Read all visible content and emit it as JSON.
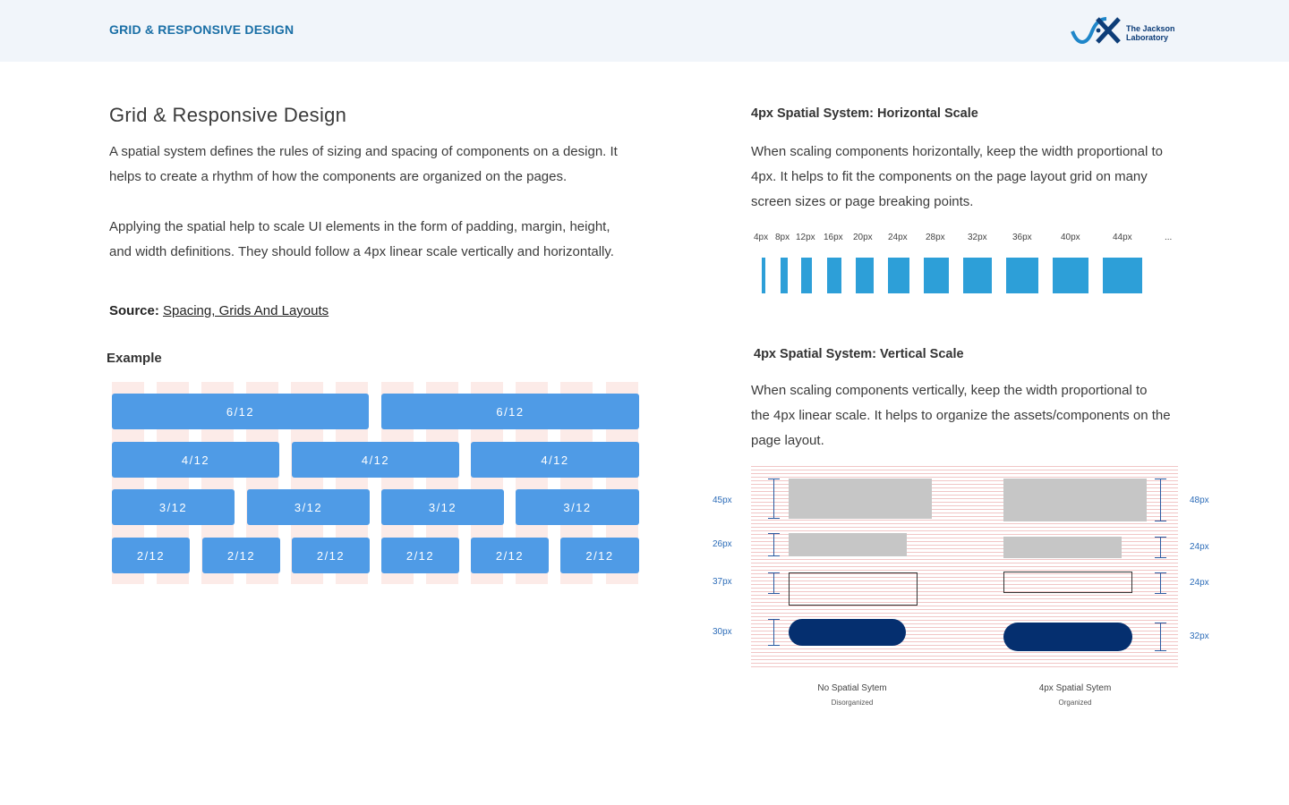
{
  "header": {
    "breadcrumb": "GRID & RESPONSIVE DESIGN",
    "logo_line1": "The Jackson",
    "logo_line2": "Laboratory",
    "accent": "#1a6fa6"
  },
  "left": {
    "title": "Grid & Responsive Design",
    "para1_line1": "A spatial system defines the rules of sizing and spacing of components on a design. It",
    "para1_line2": "helps to create a  rhythm of how the components are organized on the pages.",
    "para2_line1": "Applying the spatial help to scale UI elements in the form of padding, margin, height,",
    "para2_line2": "and width definitions. They should follow a 4px linear scale vertically and horizontally.",
    "source_label": "Source:",
    "source_link": "Spacing, Grids And Layouts",
    "example_label": "Example",
    "grid_rows": [
      [
        "6/12",
        "6/12"
      ],
      [
        "4/12",
        "4/12",
        "4/12"
      ],
      [
        "3/12",
        "3/12",
        "3/12",
        "3/12"
      ],
      [
        "2/12",
        "2/12",
        "2/12",
        "2/12",
        "2/12",
        "2/12"
      ]
    ]
  },
  "horizontal": {
    "heading": "4px Spatial System: Horizontal Scale",
    "line1": "When scaling components horizontally, keep the width proportional to",
    "line2": "4px. It helps to fit the components on the page layout grid on many",
    "line3": "screen sizes or page breaking points.",
    "scale_labels": [
      "4px",
      "8px",
      "12px",
      "16px",
      "20px",
      "24px",
      "28px",
      "32px",
      "36px",
      "40px",
      "44px",
      "..."
    ],
    "bar_color": "#2d9fd8"
  },
  "vertical": {
    "heading": "4px Spatial System: Vertical Scale",
    "line1": "When scaling components vertically, keep the width proportional to",
    "line2": "the 4px linear scale. It helps to organize the assets/components on the",
    "line3": "page layout.",
    "left_labels": [
      "45px",
      "26px",
      "37px",
      "30px"
    ],
    "right_labels": [
      "48px",
      "24px",
      "24px",
      "32px"
    ],
    "left_caption": "No Spatial Sytem",
    "left_subcaption": "Disorganized",
    "right_caption": "4px Spatial Sytem",
    "right_subcaption": "Organized",
    "pill_color": "#052f6f"
  }
}
